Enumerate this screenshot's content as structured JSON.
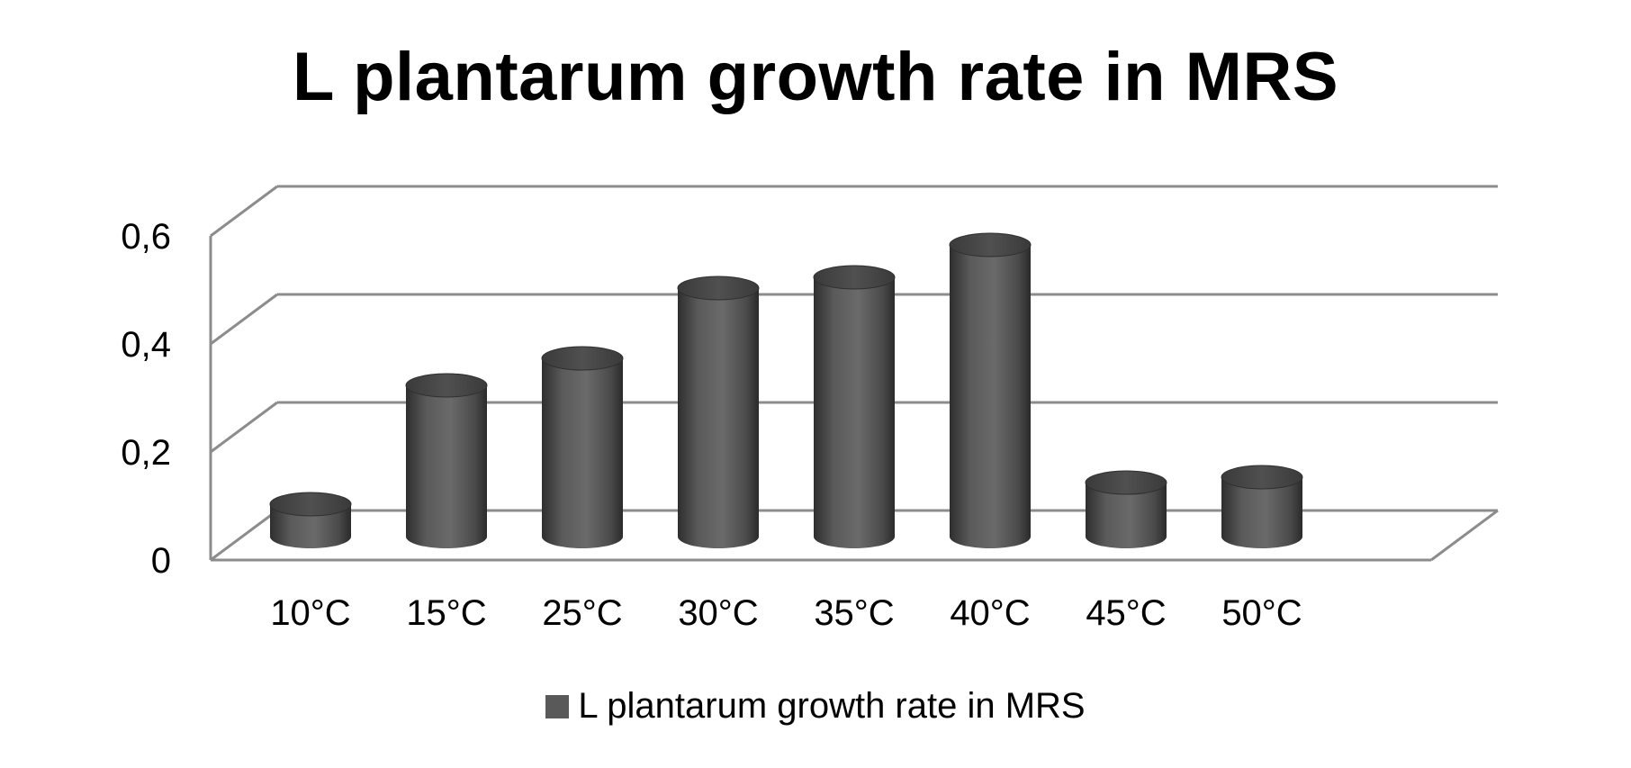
{
  "chart_data": {
    "type": "bar",
    "title": "L plantarum growth rate in MRS",
    "categories": [
      "10°C",
      "15°C",
      "25°C",
      "30°C",
      "35°C",
      "40°C",
      "45°C",
      "50°C"
    ],
    "series": [
      {
        "name": "L plantarum growth rate in MRS",
        "values": [
          0.06,
          0.28,
          0.33,
          0.46,
          0.48,
          0.54,
          0.1,
          0.11
        ],
        "color": "#595959"
      }
    ],
    "y_ticks": [
      "0",
      "0,2",
      "0,4",
      "0,6"
    ],
    "ylim": [
      0,
      0.6
    ],
    "grid": true,
    "legend_position": "bottom",
    "style": "3d-cylinder"
  }
}
